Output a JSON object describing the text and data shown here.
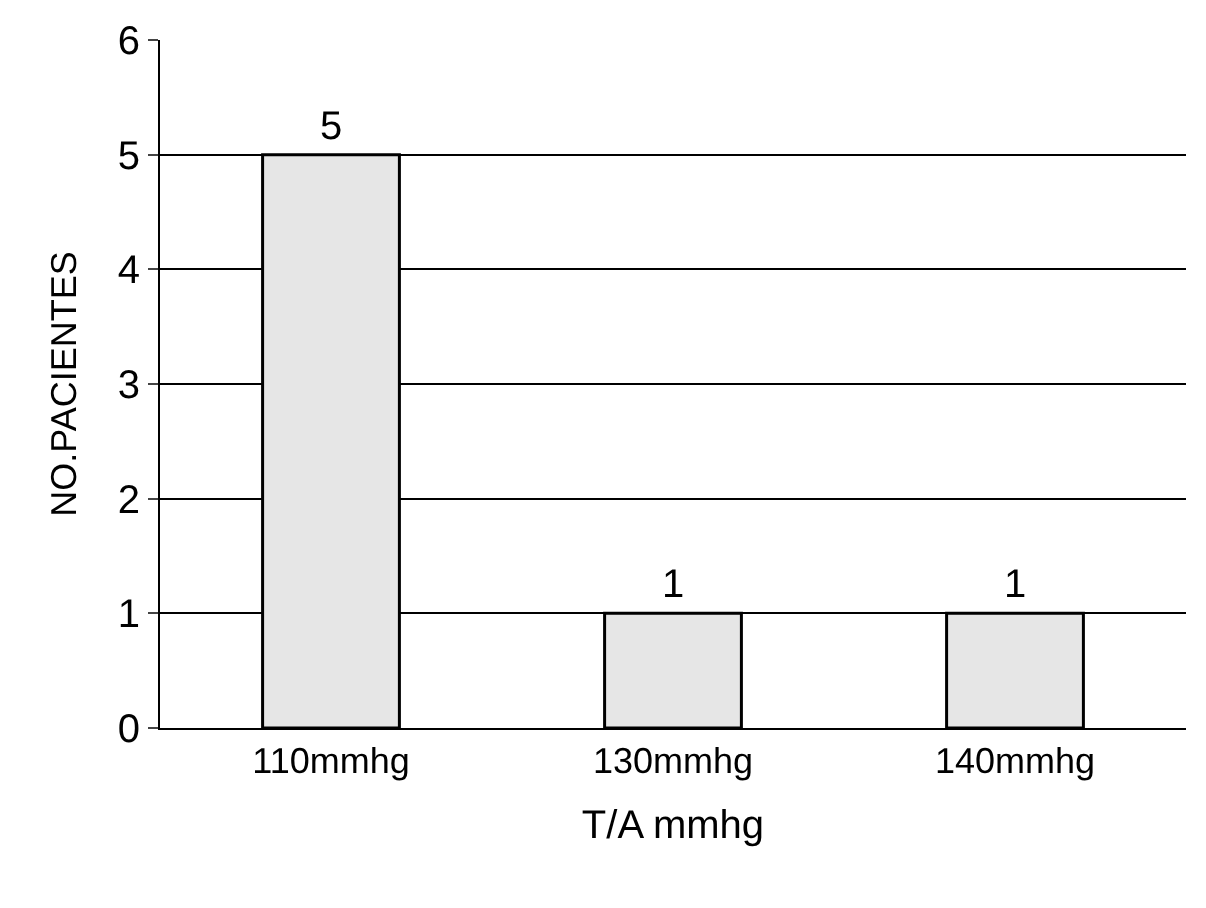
{
  "chart_data": {
    "type": "bar",
    "xlabel": "T/A mmhg",
    "ylabel": "NO.PACIENTES",
    "categories": [
      "110mmhg",
      "130mmhg",
      "140mmhg"
    ],
    "values": [
      5,
      1,
      1
    ],
    "color": "#e6e6e6",
    "ylim": [
      0,
      6
    ],
    "yticks": [
      0,
      1,
      2,
      3,
      4,
      5,
      6
    ],
    "grid": "y",
    "data_labels": true
  }
}
